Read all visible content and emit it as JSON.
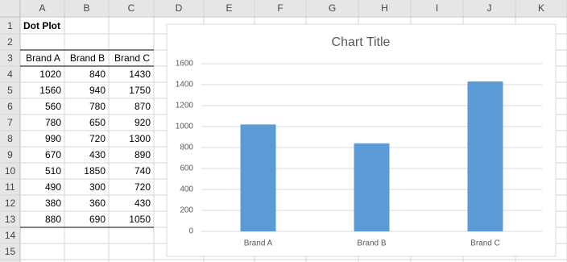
{
  "sheet": {
    "columns": [
      "A",
      "B",
      "C",
      "D",
      "E",
      "F",
      "G",
      "H",
      "I",
      "J",
      "K"
    ],
    "rows": [
      1,
      2,
      3,
      4,
      5,
      6,
      7,
      8,
      9,
      10,
      11,
      12,
      13,
      14,
      15
    ],
    "title": "Dot Plot",
    "headers": [
      "Brand A",
      "Brand B",
      "Brand C"
    ],
    "data": [
      [
        1020,
        840,
        1430
      ],
      [
        1560,
        940,
        1750
      ],
      [
        560,
        780,
        870
      ],
      [
        780,
        650,
        920
      ],
      [
        990,
        720,
        1300
      ],
      [
        670,
        430,
        890
      ],
      [
        510,
        1850,
        740
      ],
      [
        490,
        300,
        720
      ],
      [
        380,
        360,
        430
      ],
      [
        880,
        690,
        1050
      ]
    ]
  },
  "chart_data": {
    "type": "bar",
    "title": "Chart Title",
    "categories": [
      "Brand A",
      "Brand B",
      "Brand C"
    ],
    "values": [
      1020,
      840,
      1430
    ],
    "color": "#5b9bd5",
    "ylim": [
      0,
      1600
    ],
    "yticks": [
      0,
      200,
      400,
      600,
      800,
      1000,
      1200,
      1400,
      1600
    ],
    "grid": true
  }
}
